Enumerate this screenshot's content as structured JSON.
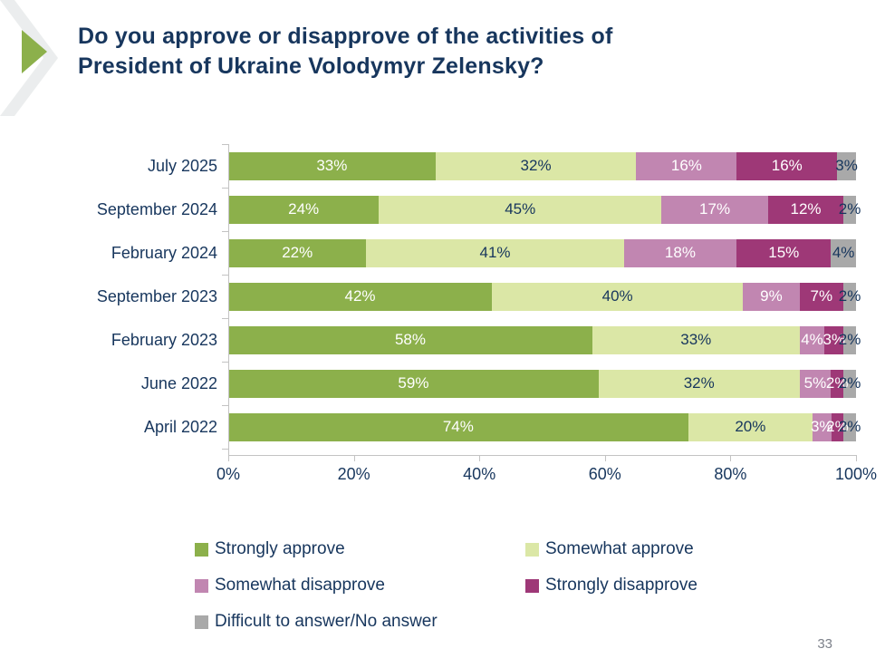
{
  "slide": {
    "title_line1": "Do you approve or disapprove of the activities of",
    "title_line2": "President of Ukraine Volodymyr Zelensky?",
    "page_number": "33",
    "accent_colors": {
      "title_navy": "#17365d",
      "arrow_green": "#8cb04b",
      "chevron_gray": "#ebedee",
      "axis_gray": "#c3c3c3"
    }
  },
  "chart_data": {
    "type": "bar",
    "stacked": true,
    "orientation": "horizontal",
    "title": "",
    "categories": [
      "July 2025",
      "September 2024",
      "February 2024",
      "September 2023",
      "February 2023",
      "June 2022",
      "April 2022"
    ],
    "series": [
      {
        "name": "Strongly approve",
        "color": "#8cb04b",
        "label_color": "#ffffff",
        "values": [
          33,
          24,
          22,
          42,
          58,
          59,
          74
        ]
      },
      {
        "name": "Somewhat approve",
        "color": "#dbe7a6",
        "label_color": "#17365d",
        "values": [
          32,
          45,
          41,
          40,
          33,
          32,
          20
        ]
      },
      {
        "name": "Somewhat disapprove",
        "color": "#c186b1",
        "label_color": "#ffffff",
        "values": [
          16,
          17,
          18,
          9,
          4,
          5,
          3
        ]
      },
      {
        "name": "Strongly disapprove",
        "color": "#9e3877",
        "label_color": "#ffffff",
        "values": [
          16,
          12,
          15,
          7,
          3,
          2,
          2
        ]
      },
      {
        "name": "Difficult to answer/No answer",
        "color": "#a9a9a9",
        "label_color": "#17365d",
        "values": [
          3,
          2,
          4,
          2,
          2,
          2,
          2
        ]
      }
    ],
    "value_suffix": "%",
    "x_axis": {
      "min": 0,
      "max": 100,
      "tick_labels": [
        "0%",
        "20%",
        "40%",
        "60%",
        "80%",
        "100%"
      ]
    },
    "legend_position": "bottom",
    "grid": false
  }
}
